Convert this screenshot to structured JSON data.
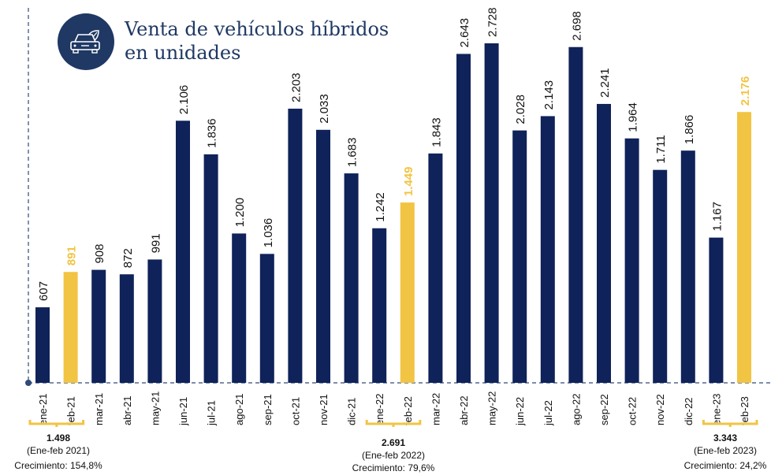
{
  "chart_data": {
    "type": "bar",
    "title": "Venta de vehículos híbridos en unidades",
    "title_lines": [
      "Venta de vehículos híbridos",
      "en unidades"
    ],
    "categories": [
      "ene-21",
      "feb-21",
      "mar-21",
      "abr-21",
      "may-21",
      "jun-21",
      "jul-21",
      "ago-21",
      "sep-21",
      "oct-21",
      "nov-21",
      "dic-21",
      "ene-22",
      "feb-22",
      "mar-22",
      "abr-22",
      "may-22",
      "jun-22",
      "jul-22",
      "ago-22",
      "sep-22",
      "oct-22",
      "nov-22",
      "dic-22",
      "ene-23",
      "feb-23"
    ],
    "values": [
      607,
      891,
      908,
      872,
      991,
      2106,
      1836,
      1200,
      1036,
      2203,
      2033,
      1683,
      1242,
      1449,
      1843,
      2643,
      2728,
      2028,
      2143,
      2698,
      2241,
      1964,
      1711,
      1866,
      1167,
      2176
    ],
    "data_labels": [
      "607",
      "891",
      "908",
      "872",
      "991",
      "2.106",
      "1.836",
      "1.200",
      "1.036",
      "2.203",
      "2.033",
      "1.683",
      "1.242",
      "1.449",
      "1.843",
      "2.643",
      "2.728",
      "2.028",
      "2.143",
      "2.698",
      "2.241",
      "1.964",
      "1.711",
      "1.866",
      "1.167",
      "2.176"
    ],
    "highlighted": [
      "feb-21",
      "feb-22",
      "feb-23"
    ],
    "colors": {
      "bar": "#0f2259",
      "highlight": "#f2c443",
      "title": "#1f3864"
    },
    "ylim": [
      0,
      2800
    ],
    "grid": false,
    "legend": "none",
    "annotations": [
      {
        "span": [
          "ene-21",
          "feb-21"
        ],
        "total": "1.498",
        "period": "(Ene-feb 2021)",
        "growth": "Crecimiento: 154,8%"
      },
      {
        "span": [
          "ene-22",
          "feb-22"
        ],
        "total": "2.691",
        "period": "(Ene-feb 2022)",
        "growth": "Crecimiento: 79,6%"
      },
      {
        "span": [
          "ene-23",
          "feb-23"
        ],
        "total": "3.343",
        "period": "(Ene-feb 2023)",
        "growth": "Crecimiento: 24,2%"
      }
    ]
  },
  "icon": "hybrid-car-leaf-icon"
}
